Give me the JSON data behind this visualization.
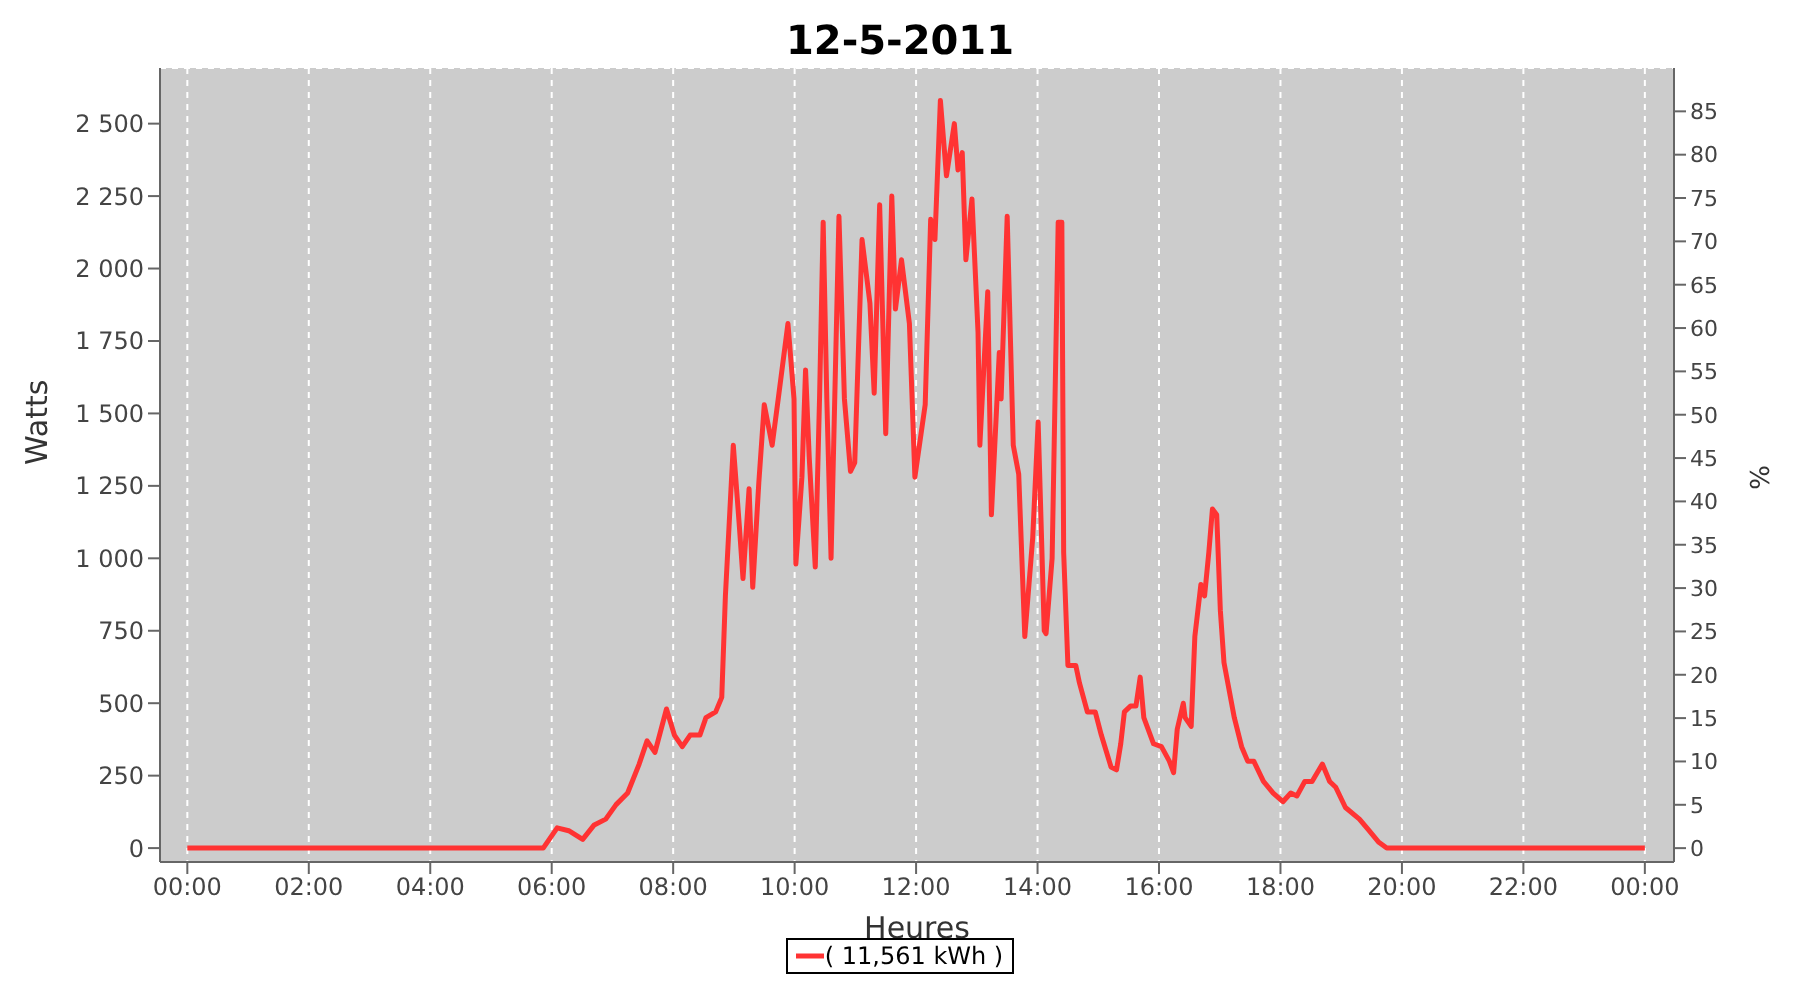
{
  "chart_data": {
    "type": "line",
    "title": "12-5-2011",
    "xlabel": "Heures",
    "ylabel": "Watts",
    "y2label": "%",
    "x": [
      0,
      5.86,
      6.09,
      6.28,
      6.51,
      6.7,
      6.89,
      7.06,
      7.25,
      7.44,
      7.57,
      7.7,
      7.89,
      8.02,
      8.15,
      8.28,
      8.44,
      8.54,
      8.7,
      8.8,
      8.86,
      8.99,
      9.09,
      9.15,
      9.25,
      9.31,
      9.41,
      9.5,
      9.63,
      9.73,
      9.89,
      9.99,
      10.02,
      10.12,
      10.18,
      10.24,
      10.34,
      10.41,
      10.47,
      10.53,
      10.6,
      10.73,
      10.82,
      10.92,
      10.99,
      11.11,
      11.24,
      11.31,
      11.4,
      11.5,
      11.6,
      11.66,
      11.76,
      11.89,
      11.98,
      12.15,
      12.24,
      12.31,
      12.4,
      12.5,
      12.63,
      12.69,
      12.76,
      12.82,
      12.92,
      13.02,
      13.05,
      13.18,
      13.24,
      13.37,
      13.4,
      13.5,
      13.6,
      13.69,
      13.79,
      13.92,
      14.01,
      14.11,
      14.14,
      14.24,
      14.34,
      14.4,
      14.43,
      14.5,
      14.63,
      14.69,
      14.82,
      14.95,
      15.05,
      15.21,
      15.3,
      15.37,
      15.43,
      15.53,
      15.62,
      15.69,
      15.75,
      15.91,
      16.04,
      16.17,
      16.24,
      16.3,
      16.4,
      16.43,
      16.53,
      16.59,
      16.69,
      16.75,
      16.82,
      16.88,
      16.95,
      17.01,
      17.07,
      17.24,
      17.36,
      17.46,
      17.56,
      17.72,
      17.88,
      18.04,
      18.17,
      18.27,
      18.4,
      18.52,
      18.69,
      18.81,
      18.91,
      19.07,
      19.3,
      19.46,
      19.62,
      19.75,
      24
    ],
    "series": [
      {
        "name": "( 11,561 kWh )",
        "color": "#ff3333",
        "values": [
          0,
          0,
          70,
          60,
          30,
          80,
          100,
          150,
          190,
          290,
          370,
          330,
          480,
          390,
          350,
          390,
          390,
          450,
          470,
          520,
          870,
          1390,
          1110,
          930,
          1240,
          900,
          1260,
          1530,
          1390,
          1550,
          1810,
          1550,
          980,
          1280,
          1650,
          1350,
          970,
          1550,
          2160,
          1550,
          1000,
          2180,
          1550,
          1300,
          1330,
          2100,
          1880,
          1570,
          2220,
          1430,
          2250,
          1860,
          2030,
          1810,
          1280,
          1530,
          2170,
          2100,
          2580,
          2320,
          2500,
          2340,
          2400,
          2030,
          2240,
          1780,
          1390,
          1920,
          1150,
          1710,
          1550,
          2180,
          1390,
          1290,
          730,
          1070,
          1470,
          750,
          740,
          1000,
          2160,
          2160,
          1020,
          630,
          630,
          570,
          470,
          470,
          390,
          280,
          270,
          360,
          470,
          490,
          490,
          590,
          450,
          360,
          350,
          300,
          260,
          410,
          500,
          450,
          420,
          730,
          910,
          870,
          1020,
          1170,
          1150,
          820,
          640,
          450,
          350,
          300,
          300,
          230,
          190,
          160,
          190,
          180,
          230,
          230,
          290,
          230,
          210,
          140,
          100,
          60,
          20,
          0,
          0
        ]
      }
    ],
    "xlim": [
      -0.45,
      24.48
    ],
    "xticks": [
      {
        "value": 0,
        "label": "00:00"
      },
      {
        "value": 2,
        "label": "02:00"
      },
      {
        "value": 4,
        "label": "04:00"
      },
      {
        "value": 6,
        "label": "06:00"
      },
      {
        "value": 8,
        "label": "08:00"
      },
      {
        "value": 10,
        "label": "10:00"
      },
      {
        "value": 12,
        "label": "12:00"
      },
      {
        "value": 14,
        "label": "14:00"
      },
      {
        "value": 16,
        "label": "16:00"
      },
      {
        "value": 18,
        "label": "18:00"
      },
      {
        "value": 20,
        "label": "20:00"
      },
      {
        "value": 22,
        "label": "22:00"
      },
      {
        "value": 24,
        "label": "00:00"
      }
    ],
    "ylim": [
      -48,
      2692
    ],
    "yticks": [
      0,
      250,
      500,
      750,
      {
        "value": 1000,
        "label": "1 000"
      },
      {
        "value": 1250,
        "label": "1 250"
      },
      {
        "value": 1500,
        "label": "1 500"
      },
      {
        "value": 1750,
        "label": "1 750"
      },
      {
        "value": 2000,
        "label": "2 000"
      },
      {
        "value": 2250,
        "label": "2 250"
      },
      {
        "value": 2500,
        "label": "2 500"
      }
    ],
    "y2lim": [
      -1.6,
      90
    ],
    "y2ticks": [
      0,
      5,
      10,
      15,
      20,
      25,
      30,
      35,
      40,
      45,
      50,
      55,
      60,
      65,
      70,
      75,
      80,
      85
    ],
    "grid": true,
    "legend": "bottom",
    "marker": "none",
    "line_style": "solid"
  }
}
